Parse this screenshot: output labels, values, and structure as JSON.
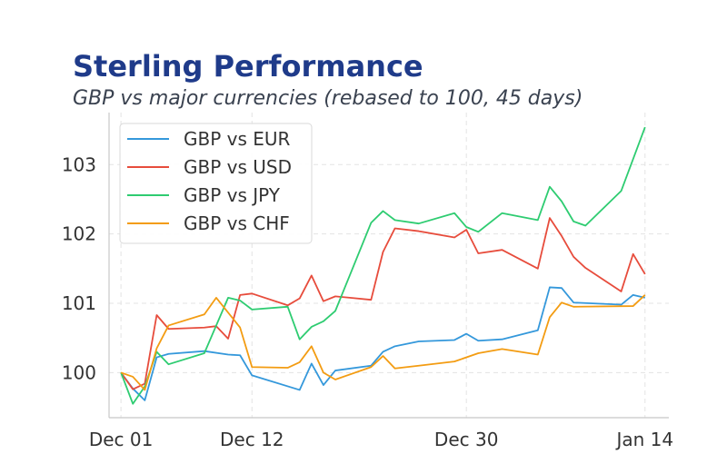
{
  "chart_data": {
    "type": "line",
    "title": "Sterling Performance",
    "subtitle": "GBP vs major currencies (rebased to 100, 45 days)",
    "xlabel": "",
    "ylabel": "",
    "x_axis_type": "date",
    "xlim": [
      "2024-11-30",
      "2025-01-16"
    ],
    "ylim": [
      99.35,
      103.75
    ],
    "x_ticks": [
      {
        "date": "2024-12-01",
        "label": "Dec 01"
      },
      {
        "date": "2024-12-12",
        "label": "Dec 12"
      },
      {
        "date": "2024-12-30",
        "label": "Dec 30"
      },
      {
        "date": "2025-01-14",
        "label": "Jan 14"
      }
    ],
    "y_ticks": [
      100,
      101,
      102,
      103
    ],
    "grid": true,
    "legend_position": "top-left",
    "series": [
      {
        "name": "GBP vs EUR",
        "color": "#3498db",
        "points": [
          [
            "2024-12-01",
            100.0
          ],
          [
            "2024-12-02",
            99.77
          ],
          [
            "2024-12-03",
            99.6
          ],
          [
            "2024-12-04",
            100.22
          ],
          [
            "2024-12-05",
            100.27
          ],
          [
            "2024-12-08",
            100.31
          ],
          [
            "2024-12-10",
            100.26
          ],
          [
            "2024-12-11",
            100.25
          ],
          [
            "2024-12-12",
            99.96
          ],
          [
            "2024-12-16",
            99.75
          ],
          [
            "2024-12-17",
            100.13
          ],
          [
            "2024-12-18",
            99.82
          ],
          [
            "2024-12-19",
            100.03
          ],
          [
            "2024-12-22",
            100.1
          ],
          [
            "2024-12-23",
            100.3
          ],
          [
            "2024-12-24",
            100.38
          ],
          [
            "2024-12-26",
            100.45
          ],
          [
            "2024-12-29",
            100.47
          ],
          [
            "2024-12-30",
            100.56
          ],
          [
            "2024-12-31",
            100.46
          ],
          [
            "2025-01-02",
            100.48
          ],
          [
            "2025-01-05",
            100.61
          ],
          [
            "2025-01-06",
            101.23
          ],
          [
            "2025-01-07",
            101.22
          ],
          [
            "2025-01-08",
            101.01
          ],
          [
            "2025-01-12",
            100.98
          ],
          [
            "2025-01-13",
            101.12
          ],
          [
            "2025-01-14",
            101.08
          ]
        ]
      },
      {
        "name": "GBP vs USD",
        "color": "#e74c3c",
        "points": [
          [
            "2024-12-01",
            100.0
          ],
          [
            "2024-12-02",
            99.76
          ],
          [
            "2024-12-03",
            99.84
          ],
          [
            "2024-12-04",
            100.83
          ],
          [
            "2024-12-05",
            100.63
          ],
          [
            "2024-12-08",
            100.65
          ],
          [
            "2024-12-09",
            100.67
          ],
          [
            "2024-12-10",
            100.49
          ],
          [
            "2024-12-11",
            101.12
          ],
          [
            "2024-12-12",
            101.14
          ],
          [
            "2024-12-15",
            100.97
          ],
          [
            "2024-12-16",
            101.07
          ],
          [
            "2024-12-17",
            101.4
          ],
          [
            "2024-12-18",
            101.03
          ],
          [
            "2024-12-19",
            101.1
          ],
          [
            "2024-12-22",
            101.05
          ],
          [
            "2024-12-23",
            101.74
          ],
          [
            "2024-12-24",
            102.08
          ],
          [
            "2024-12-26",
            102.04
          ],
          [
            "2024-12-29",
            101.95
          ],
          [
            "2024-12-30",
            102.06
          ],
          [
            "2024-12-31",
            101.72
          ],
          [
            "2025-01-02",
            101.77
          ],
          [
            "2025-01-05",
            101.5
          ],
          [
            "2025-01-06",
            102.23
          ],
          [
            "2025-01-07",
            101.97
          ],
          [
            "2025-01-08",
            101.67
          ],
          [
            "2025-01-09",
            101.51
          ],
          [
            "2025-01-12",
            101.17
          ],
          [
            "2025-01-13",
            101.71
          ],
          [
            "2025-01-14",
            101.42
          ]
        ]
      },
      {
        "name": "GBP vs JPY",
        "color": "#2ecc71",
        "points": [
          [
            "2024-12-01",
            100.0
          ],
          [
            "2024-12-02",
            99.55
          ],
          [
            "2024-12-03",
            99.8
          ],
          [
            "2024-12-04",
            100.3
          ],
          [
            "2024-12-05",
            100.12
          ],
          [
            "2024-12-08",
            100.28
          ],
          [
            "2024-12-10",
            101.08
          ],
          [
            "2024-12-11",
            101.04
          ],
          [
            "2024-12-12",
            100.91
          ],
          [
            "2024-12-15",
            100.95
          ],
          [
            "2024-12-16",
            100.48
          ],
          [
            "2024-12-17",
            100.66
          ],
          [
            "2024-12-18",
            100.74
          ],
          [
            "2024-12-19",
            100.89
          ],
          [
            "2024-12-22",
            102.16
          ],
          [
            "2024-12-23",
            102.33
          ],
          [
            "2024-12-24",
            102.2
          ],
          [
            "2024-12-26",
            102.15
          ],
          [
            "2024-12-29",
            102.3
          ],
          [
            "2024-12-30",
            102.1
          ],
          [
            "2024-12-31",
            102.03
          ],
          [
            "2025-01-02",
            102.3
          ],
          [
            "2025-01-05",
            102.2
          ],
          [
            "2025-01-06",
            102.68
          ],
          [
            "2025-01-07",
            102.47
          ],
          [
            "2025-01-08",
            102.18
          ],
          [
            "2025-01-09",
            102.12
          ],
          [
            "2025-01-12",
            102.62
          ],
          [
            "2025-01-14",
            103.54
          ]
        ]
      },
      {
        "name": "GBP vs CHF",
        "color": "#f39c12",
        "points": [
          [
            "2024-12-01",
            100.0
          ],
          [
            "2024-12-02",
            99.94
          ],
          [
            "2024-12-03",
            99.75
          ],
          [
            "2024-12-04",
            100.35
          ],
          [
            "2024-12-05",
            100.68
          ],
          [
            "2024-12-08",
            100.84
          ],
          [
            "2024-12-09",
            101.08
          ],
          [
            "2024-12-11",
            100.65
          ],
          [
            "2024-12-12",
            100.08
          ],
          [
            "2024-12-15",
            100.07
          ],
          [
            "2024-12-16",
            100.15
          ],
          [
            "2024-12-17",
            100.38
          ],
          [
            "2024-12-18",
            100.0
          ],
          [
            "2024-12-19",
            99.9
          ],
          [
            "2024-12-22",
            100.08
          ],
          [
            "2024-12-23",
            100.24
          ],
          [
            "2024-12-24",
            100.06
          ],
          [
            "2024-12-26",
            100.1
          ],
          [
            "2024-12-29",
            100.16
          ],
          [
            "2024-12-31",
            100.28
          ],
          [
            "2025-01-02",
            100.34
          ],
          [
            "2025-01-05",
            100.26
          ],
          [
            "2025-01-06",
            100.8
          ],
          [
            "2025-01-07",
            101.01
          ],
          [
            "2025-01-08",
            100.95
          ],
          [
            "2025-01-13",
            100.96
          ],
          [
            "2025-01-14",
            101.12
          ]
        ]
      }
    ]
  }
}
